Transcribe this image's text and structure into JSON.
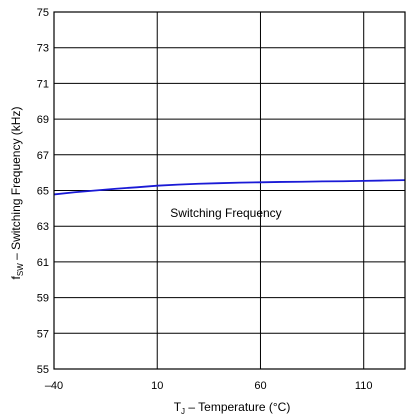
{
  "chart_data": {
    "type": "line",
    "xlabel": "T J – Temperature (°C)",
    "xlabel_parts": {
      "main": "T",
      "sub": "J",
      "rest": " – Temperature (°C)"
    },
    "ylabel_parts": {
      "main": "f",
      "sub": "SW",
      "rest": " – Switching Frequency (kHz)"
    },
    "xlim": [
      -40,
      130
    ],
    "ylim": [
      55,
      75
    ],
    "x_ticks": [
      -40,
      10,
      60,
      110
    ],
    "x_tick_labels": [
      "–40",
      "10",
      "60",
      "110"
    ],
    "y_ticks": [
      55,
      57,
      59,
      61,
      63,
      65,
      67,
      69,
      71,
      73,
      75
    ],
    "y_tick_labels": [
      "55",
      "57",
      "59",
      "61",
      "63",
      "65",
      "67",
      "69",
      "71",
      "73",
      "75"
    ],
    "grid": true,
    "colors": {
      "line": "#1a1ad6",
      "grid": "#000000",
      "axis": "#000000"
    },
    "series": [
      {
        "name": "Switching Frequency",
        "x": [
          -40,
          -30,
          -20,
          -10,
          0,
          10,
          20,
          30,
          40,
          50,
          60,
          70,
          80,
          90,
          100,
          110,
          120,
          130
        ],
        "y": [
          64.78,
          64.9,
          65.0,
          65.1,
          65.18,
          65.27,
          65.33,
          65.38,
          65.41,
          65.44,
          65.46,
          65.48,
          65.49,
          65.51,
          65.52,
          65.54,
          65.56,
          65.58
        ]
      }
    ],
    "annotation": "Switching Frequency"
  }
}
